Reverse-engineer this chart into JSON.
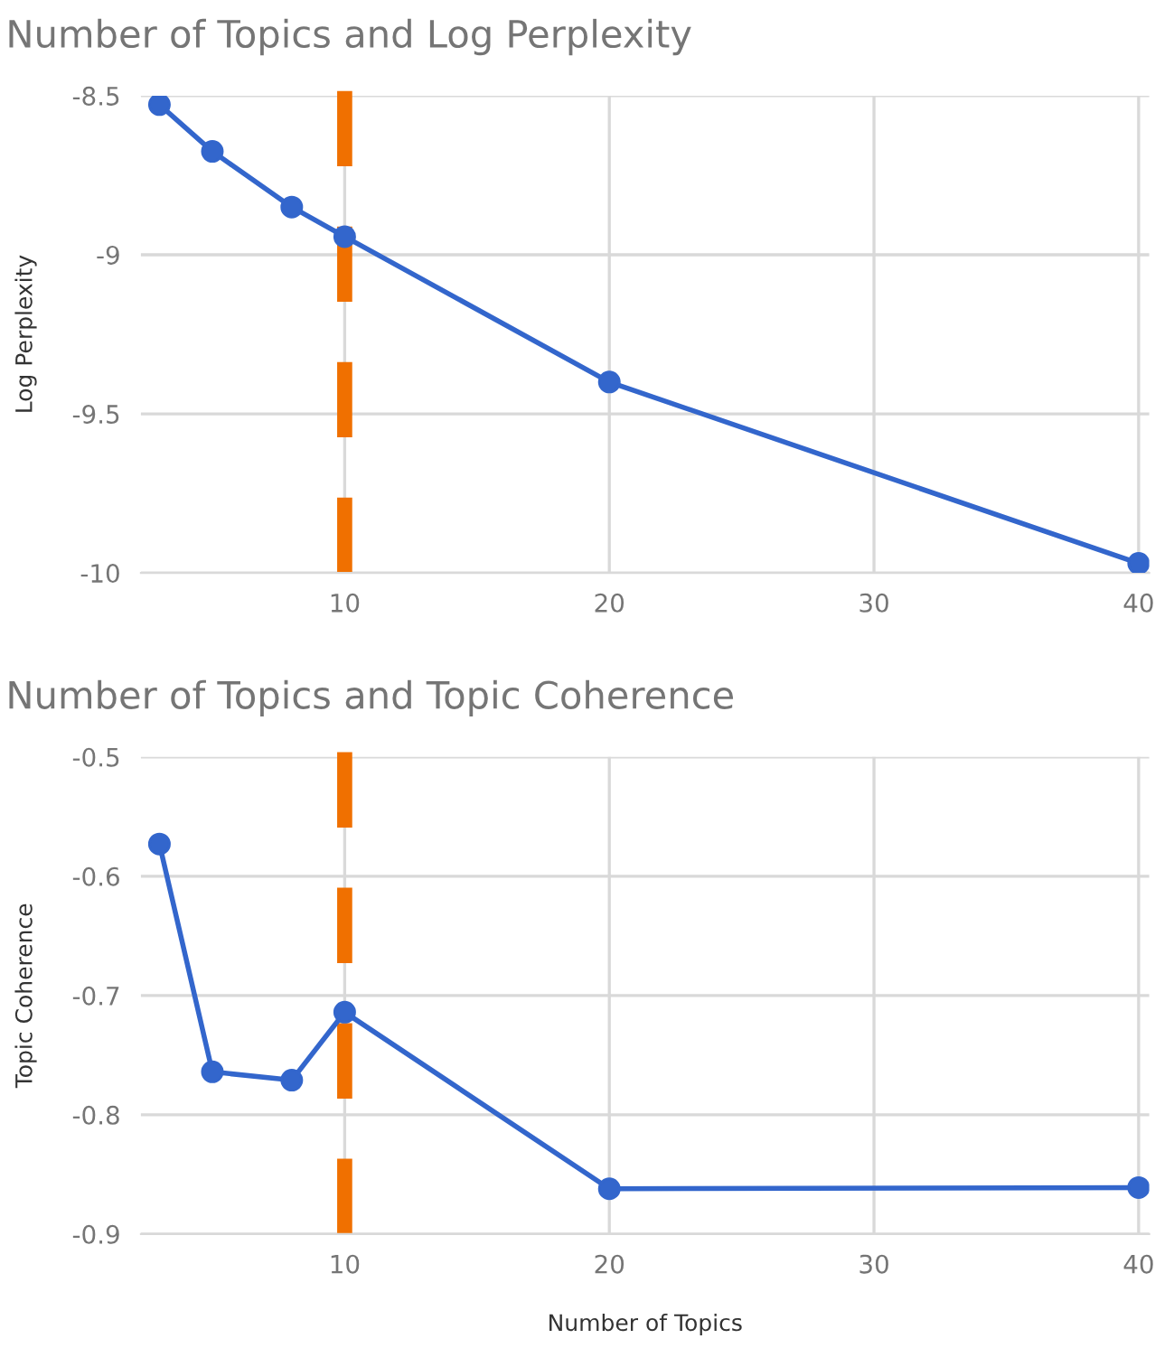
{
  "chart_data": [
    {
      "type": "line",
      "title": "Number of Topics and Log Perplexity",
      "ylabel": "Log Perplexity",
      "x": [
        3,
        5,
        8,
        10,
        20,
        40
      ],
      "series": [
        {
          "color": "#3366cc",
          "values": [
            -8.528,
            -8.675,
            -8.85,
            -8.943,
            -9.4,
            -9.97
          ]
        }
      ],
      "xlim": [
        2.3,
        40.4
      ],
      "xticks": [
        10,
        20,
        30,
        40
      ],
      "ylim": [
        -10,
        -8.5
      ],
      "yticks": [
        -10,
        -9.5,
        -9,
        -8.5
      ],
      "grid": true,
      "marker": "circle",
      "line_style": "solid",
      "legend": false,
      "ref_lines": [
        {
          "axis": "x",
          "value": 10,
          "color": "#f07000",
          "line_style": "dashed"
        }
      ]
    },
    {
      "type": "line",
      "title": "Number of Topics and Topic Coherence",
      "ylabel": "Topic Coherence",
      "xlabel": "Number of Topics",
      "x": [
        3,
        5,
        8,
        10,
        20,
        40
      ],
      "series": [
        {
          "color": "#3366cc",
          "values": [
            -0.573,
            -0.764,
            -0.771,
            -0.714,
            -0.862,
            -0.861
          ]
        }
      ],
      "xlim": [
        2.3,
        40.4
      ],
      "xticks": [
        10,
        20,
        30,
        40
      ],
      "ylim": [
        -0.9,
        -0.5
      ],
      "yticks": [
        -0.9,
        -0.8,
        -0.7,
        -0.6,
        -0.5
      ],
      "grid": true,
      "marker": "circle",
      "line_style": "solid",
      "legend": false,
      "ref_lines": [
        {
          "axis": "x",
          "value": 10,
          "color": "#f07000",
          "line_style": "dashed"
        }
      ]
    }
  ]
}
